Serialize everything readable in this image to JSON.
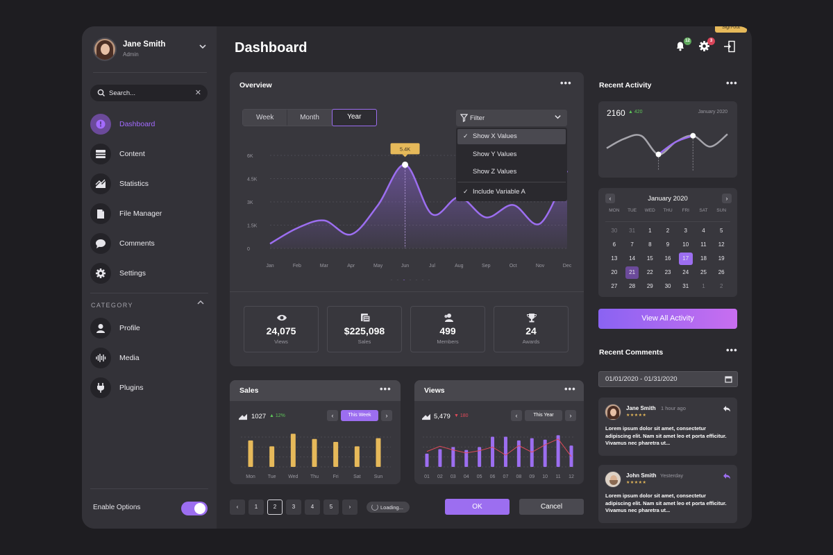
{
  "user": {
    "name": "Jane Smith",
    "role": "Admin"
  },
  "search": {
    "placeholder": "Search..."
  },
  "nav": [
    {
      "label": "Dashboard",
      "icon": "dashboard-icon",
      "active": true
    },
    {
      "label": "Content",
      "icon": "content-icon"
    },
    {
      "label": "Statistics",
      "icon": "statistics-icon"
    },
    {
      "label": "File Manager",
      "icon": "file-icon"
    },
    {
      "label": "Comments",
      "icon": "comment-icon"
    },
    {
      "label": "Settings",
      "icon": "gear-icon"
    }
  ],
  "category": {
    "title": "CATEGORY",
    "items": [
      {
        "label": "Profile",
        "icon": "profile-icon"
      },
      {
        "label": "Media",
        "icon": "media-icon"
      },
      {
        "label": "Plugins",
        "icon": "plugin-icon"
      }
    ]
  },
  "enable_options": {
    "label": "Enable Options",
    "on": true
  },
  "header": {
    "title": "Dashboard",
    "notifications_count": "12",
    "settings_count": "3",
    "signout_tooltip": "Sign-out"
  },
  "overview": {
    "title": "Overview",
    "ranges": [
      "Week",
      "Month",
      "Year"
    ],
    "selected_range": "Year",
    "filter": {
      "label": "Filter",
      "options": [
        {
          "label": "Show X Values",
          "checked": true
        },
        {
          "label": "Show Y Values",
          "checked": false
        },
        {
          "label": "Show Z Values",
          "checked": false
        },
        {
          "label": "Include Variable A",
          "checked": true
        }
      ]
    },
    "peak_label": "5.4K",
    "stats": [
      {
        "value": "24,075",
        "label": "Views",
        "icon": "eye-icon"
      },
      {
        "value": "$225,098",
        "label": "Sales",
        "icon": "money-icon"
      },
      {
        "value": "499",
        "label": "Members",
        "icon": "members-icon"
      },
      {
        "value": "24",
        "label": "Awards",
        "icon": "trophy-icon"
      }
    ]
  },
  "sales": {
    "title": "Sales",
    "value": "1027",
    "change": "12%",
    "period": "This Week"
  },
  "views": {
    "title": "Views",
    "value": "5,479",
    "change": "180",
    "period": "This Year"
  },
  "pagination": {
    "pages": [
      "1",
      "2",
      "3",
      "4",
      "5"
    ],
    "selected": "2",
    "loading": "Loading..."
  },
  "actions": {
    "ok": "OK",
    "cancel": "Cancel"
  },
  "recent_activity": {
    "title": "Recent Activity",
    "value": "2160",
    "change": "420",
    "date": "January 2020"
  },
  "calendar": {
    "month": "January 2020",
    "weekdays": [
      "MON",
      "TUE",
      "WED",
      "THU",
      "FRI",
      "SAT",
      "SUN"
    ],
    "weeks": [
      [
        "30",
        "31",
        "1",
        "2",
        "3",
        "4",
        "5"
      ],
      [
        "6",
        "7",
        "8",
        "9",
        "10",
        "11",
        "12"
      ],
      [
        "13",
        "14",
        "15",
        "16",
        "17",
        "18",
        "19"
      ],
      [
        "20",
        "21",
        "22",
        "23",
        "24",
        "25",
        "26"
      ],
      [
        "27",
        "28",
        "29",
        "30",
        "31",
        "1",
        "2"
      ]
    ],
    "today": "17",
    "highlighted": "21"
  },
  "view_all": "View All Activity",
  "recent_comments": {
    "title": "Recent Comments",
    "date_range": "01/01/2020 - 01/31/2020",
    "items": [
      {
        "name": "Jane Smith",
        "time": "1 hour ago",
        "stars": "★★★★★",
        "text": "Lorem ipsum dolor sit amet, consectetur adipiscing elit. Nam sit amet leo et porta efficitur. Vivamus nec pharetra ut..."
      },
      {
        "name": "John Smith",
        "time": "Yesterday",
        "stars": "★★★★★",
        "text": "Lorem ipsum dolor sit amet, consectetur adipiscing elit. Nam sit amet leo et porta efficitur. Vivamus nec pharetra ut..."
      }
    ]
  },
  "chart_data": [
    {
      "type": "area",
      "title": "Overview",
      "categories": [
        "Jan",
        "Feb",
        "Mar",
        "Apr",
        "May",
        "Jun",
        "Jul",
        "Aug",
        "Sep",
        "Oct",
        "Nov",
        "Dec"
      ],
      "values": [
        0.3,
        1.3,
        1.8,
        0.9,
        2.8,
        5.4,
        2.2,
        3.3,
        2.0,
        2.8,
        1.6,
        5.0
      ],
      "yticks": [
        "0",
        "1.5K",
        "3K",
        "4.5K",
        "6K"
      ],
      "ylim": [
        0,
        6
      ],
      "highlight_index": 5,
      "color": "#9c6ef0"
    },
    {
      "type": "bar",
      "title": "Sales",
      "categories": [
        "Mon",
        "Tue",
        "Wed",
        "Thu",
        "Fri",
        "Sat",
        "Sun"
      ],
      "values": [
        3.6,
        2.8,
        4.5,
        3.8,
        3.4,
        2.8,
        3.9
      ],
      "ylim": [
        0,
        5
      ],
      "color": "#e6b95a"
    },
    {
      "type": "bar",
      "title": "Views",
      "categories": [
        "01",
        "02",
        "03",
        "04",
        "05",
        "06",
        "07",
        "08",
        "09",
        "10",
        "11",
        "12"
      ],
      "values": [
        1.8,
        2.4,
        2.7,
        2.3,
        2.7,
        4.1,
        4.1,
        3.6,
        3.9,
        3.7,
        4.3,
        2.9
      ],
      "line_values": [
        2.1,
        2.8,
        2.3,
        1.9,
        2.2,
        2.7,
        1.6,
        2.9,
        2.0,
        3.0,
        3.8,
        1.4
      ],
      "ylim": [
        0,
        5
      ],
      "color": "#9c6ef0",
      "line_color": "#e04a5a"
    },
    {
      "type": "line",
      "title": "Recent Activity",
      "values": [
        2.0,
        3.2,
        3.6,
        1.2,
        2.8,
        3.6,
        2.2,
        3.8
      ],
      "ylim": [
        0,
        5
      ],
      "color": "#a6a5ac",
      "highlight_color": "#9c6ef0"
    }
  ]
}
